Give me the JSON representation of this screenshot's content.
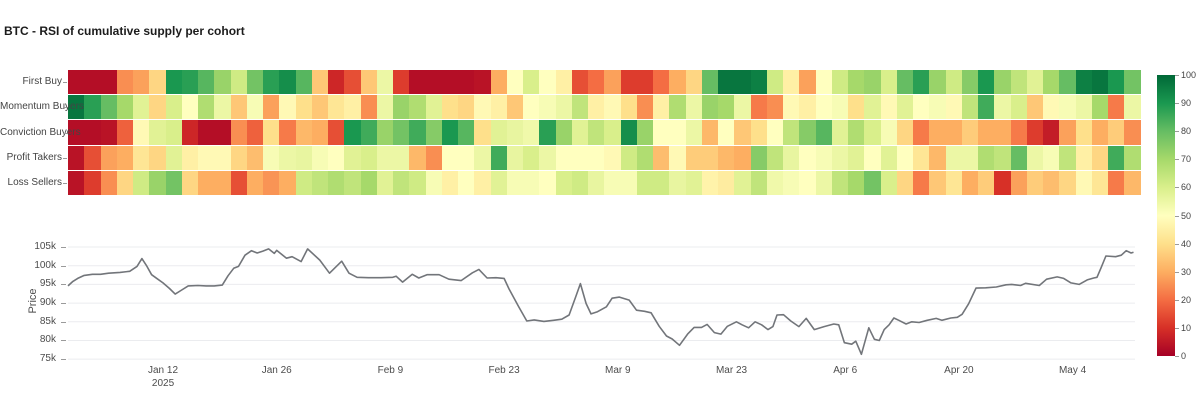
{
  "title": "BTC - RSI of cumulative supply per cohort",
  "colors": {
    "heatmap_scale": [
      "#a50026",
      "#d73027",
      "#f46d43",
      "#fdae61",
      "#fee08b",
      "#ffffbf",
      "#d9ef8b",
      "#a6d96a",
      "#66bd63",
      "#1a9850",
      "#006837"
    ],
    "price_line": "#72757a",
    "grid_line": "#ebecef",
    "title_text": "#1c1c1c",
    "axis_text": "#4c4c4c"
  },
  "chart_data": [
    {
      "type": "heatmap",
      "name": "RSI of cumulative supply per cohort",
      "rows": [
        "First Buy",
        "Momentum Buyers",
        "Conviction Buyers",
        "Profit Takers",
        "Loss Sellers"
      ],
      "value_range": [
        0,
        100
      ],
      "days_per_column": 2,
      "x_range": [
        "2024-12-31",
        "2025-05-12"
      ],
      "colorbar_ticks": [
        100,
        90,
        80,
        70,
        60,
        50,
        40,
        30,
        20,
        10,
        0
      ],
      "series": [
        {
          "name": "First Buy",
          "values": [
            3,
            3,
            3,
            25,
            28,
            38,
            90,
            88,
            82,
            72,
            62,
            78,
            88,
            92,
            82,
            35,
            8,
            15,
            35,
            55,
            12,
            3,
            3,
            3,
            3,
            4,
            30,
            50,
            60,
            50,
            45,
            15,
            20,
            28,
            12,
            12,
            20,
            30,
            38,
            80,
            97,
            97,
            95,
            62,
            45,
            28,
            50,
            62,
            70,
            72,
            60,
            80,
            88,
            72,
            62,
            75,
            90,
            72,
            65,
            58,
            70,
            80,
            95,
            97,
            90,
            78
          ]
        },
        {
          "name": "Momentum Buyers",
          "values": [
            97,
            88,
            80,
            70,
            58,
            38,
            60,
            50,
            68,
            55,
            35,
            52,
            28,
            48,
            40,
            35,
            42,
            45,
            25,
            55,
            72,
            68,
            58,
            40,
            38,
            48,
            45,
            35,
            50,
            52,
            55,
            65,
            45,
            48,
            40,
            25,
            45,
            68,
            55,
            72,
            70,
            55,
            22,
            25,
            48,
            45,
            50,
            52,
            40,
            58,
            48,
            58,
            50,
            52,
            48,
            65,
            85,
            55,
            60,
            35,
            48,
            52,
            55,
            70,
            22,
            55
          ]
        },
        {
          "name": "Conviction Buyers",
          "values": [
            3,
            3,
            4,
            18,
            48,
            58,
            60,
            8,
            3,
            3,
            25,
            18,
            40,
            22,
            32,
            30,
            15,
            90,
            85,
            72,
            78,
            85,
            75,
            90,
            82,
            40,
            58,
            56,
            54,
            88,
            72,
            58,
            65,
            60,
            92,
            72,
            50,
            50,
            55,
            32,
            50,
            35,
            40,
            50,
            65,
            75,
            82,
            58,
            68,
            60,
            52,
            38,
            22,
            30,
            30,
            36,
            30,
            30,
            22,
            12,
            6,
            28,
            40,
            30,
            36,
            25
          ]
        },
        {
          "name": "Profit Takers",
          "values": [
            4,
            15,
            28,
            30,
            42,
            38,
            58,
            45,
            48,
            48,
            38,
            33,
            52,
            55,
            56,
            52,
            50,
            58,
            60,
            55,
            55,
            32,
            25,
            50,
            50,
            55,
            85,
            56,
            60,
            55,
            50,
            50,
            50,
            48,
            62,
            68,
            33,
            48,
            36,
            36,
            32,
            30,
            75,
            65,
            56,
            50,
            52,
            55,
            58,
            50,
            58,
            50,
            42,
            32,
            55,
            55,
            68,
            65,
            80,
            55,
            52,
            65,
            45,
            38,
            85,
            68
          ]
        },
        {
          "name": "Loss Sellers",
          "values": [
            4,
            12,
            25,
            38,
            62,
            72,
            78,
            38,
            30,
            30,
            15,
            30,
            26,
            30,
            62,
            65,
            68,
            65,
            70,
            58,
            65,
            62,
            52,
            45,
            50,
            45,
            58,
            52,
            52,
            50,
            60,
            62,
            56,
            52,
            52,
            62,
            62,
            56,
            58,
            46,
            44,
            58,
            65,
            54,
            52,
            50,
            55,
            65,
            70,
            78,
            60,
            38,
            22,
            35,
            42,
            30,
            36,
            10,
            28,
            36,
            33,
            38,
            48,
            42,
            22,
            32
          ]
        }
      ]
    },
    {
      "type": "line",
      "name": "BTC price",
      "ylabel": "Price",
      "ylim": [
        74,
        106.5
      ],
      "yticks": [
        {
          "label": "105k",
          "value": 105
        },
        {
          "label": "100k",
          "value": 100
        },
        {
          "label": "95k",
          "value": 95
        },
        {
          "label": "90k",
          "value": 90
        },
        {
          "label": "85k",
          "value": 85
        },
        {
          "label": "80k",
          "value": 80
        },
        {
          "label": "75k",
          "value": 75
        }
      ],
      "xticks": [
        {
          "label": "Jan 12",
          "sublabel": "2025",
          "day": 11.7
        },
        {
          "label": "Jan 26",
          "day": 25.7
        },
        {
          "label": "Feb 9",
          "day": 39.7
        },
        {
          "label": "Feb 23",
          "day": 53.7
        },
        {
          "label": "Mar 9",
          "day": 67.7
        },
        {
          "label": "Mar 23",
          "day": 81.7
        },
        {
          "label": "Apr 6",
          "day": 95.7
        },
        {
          "label": "Apr 20",
          "day": 109.7
        },
        {
          "label": "May 4",
          "day": 123.7
        }
      ],
      "points": [
        [
          0,
          94.6
        ],
        [
          0.6,
          95.8
        ],
        [
          1.2,
          96.6
        ],
        [
          2,
          97.4
        ],
        [
          3,
          97.7
        ],
        [
          4,
          97.7
        ],
        [
          5,
          98
        ],
        [
          6.4,
          98.2
        ],
        [
          7.6,
          98.5
        ],
        [
          8.5,
          99.8
        ],
        [
          9.1,
          101.9
        ],
        [
          9.7,
          99.9
        ],
        [
          10.3,
          97.6
        ],
        [
          11,
          96.5
        ],
        [
          11.7,
          95.4
        ],
        [
          12.5,
          93.9
        ],
        [
          13.2,
          92.4
        ],
        [
          14,
          93.5
        ],
        [
          14.8,
          94.6
        ],
        [
          16,
          94.7
        ],
        [
          17,
          94.6
        ],
        [
          18,
          94.6
        ],
        [
          19,
          94.8
        ],
        [
          19.7,
          97.3
        ],
        [
          20.4,
          99.3
        ],
        [
          21,
          99.8
        ],
        [
          21.8,
          102.8
        ],
        [
          22.6,
          104
        ],
        [
          23.3,
          103.4
        ],
        [
          24,
          103.9
        ],
        [
          24.7,
          104.5
        ],
        [
          25.4,
          103.3
        ],
        [
          25.7,
          104.1
        ],
        [
          26.9,
          102
        ],
        [
          27.6,
          102.4
        ],
        [
          28.7,
          101.1
        ],
        [
          29.5,
          104.5
        ],
        [
          31,
          101.5
        ],
        [
          32.2,
          98
        ],
        [
          33.7,
          101.2
        ],
        [
          34.6,
          98
        ],
        [
          35.6,
          96.9
        ],
        [
          37,
          96.8
        ],
        [
          38.5,
          96.8
        ],
        [
          40,
          96.9
        ],
        [
          40.4,
          97.2
        ],
        [
          41.2,
          95.6
        ],
        [
          42.4,
          97.7
        ],
        [
          43.2,
          96.7
        ],
        [
          44.2,
          97.6
        ],
        [
          45.7,
          97.6
        ],
        [
          46.9,
          96.4
        ],
        [
          48.4,
          96
        ],
        [
          49.8,
          98.1
        ],
        [
          50.6,
          99
        ],
        [
          51.6,
          96.7
        ],
        [
          52.7,
          96.8
        ],
        [
          53.7,
          96.6
        ],
        [
          54.3,
          93.8
        ],
        [
          55.5,
          89
        ],
        [
          56.5,
          85.2
        ],
        [
          57.4,
          85.5
        ],
        [
          58.6,
          85.1
        ],
        [
          59.8,
          85.4
        ],
        [
          60.8,
          85.7
        ],
        [
          61.7,
          86.8
        ],
        [
          62.5,
          91.6
        ],
        [
          63.1,
          95.2
        ],
        [
          63.8,
          89.9
        ],
        [
          64.4,
          87.1
        ],
        [
          65.2,
          87.7
        ],
        [
          66.3,
          89
        ],
        [
          67,
          91.3
        ],
        [
          67.9,
          91.6
        ],
        [
          69.1,
          90.8
        ],
        [
          70,
          88.1
        ],
        [
          71,
          87.8
        ],
        [
          71.8,
          87.4
        ],
        [
          72.8,
          83.8
        ],
        [
          73.7,
          81.2
        ],
        [
          74.4,
          80.4
        ],
        [
          75.3,
          78.7
        ],
        [
          76.3,
          81.7
        ],
        [
          77.1,
          83.5
        ],
        [
          78,
          83.5
        ],
        [
          78.7,
          84.3
        ],
        [
          79.6,
          82.1
        ],
        [
          80.4,
          81.7
        ],
        [
          81.2,
          83.8
        ],
        [
          82.3,
          85
        ],
        [
          83,
          84.2
        ],
        [
          83.8,
          83.4
        ],
        [
          84.6,
          85
        ],
        [
          85.4,
          84.2
        ],
        [
          86.2,
          82.9
        ],
        [
          86.8,
          83.7
        ],
        [
          87.3,
          86.8
        ],
        [
          88.1,
          86.9
        ],
        [
          89,
          85.2
        ],
        [
          90,
          83.7
        ],
        [
          90.9,
          85.9
        ],
        [
          91.9,
          82.9
        ],
        [
          93.1,
          83.7
        ],
        [
          94.3,
          84.4
        ],
        [
          94.9,
          84.2
        ],
        [
          95.6,
          79.4
        ],
        [
          96.5,
          79
        ],
        [
          97,
          79.8
        ],
        [
          97.7,
          76.3
        ],
        [
          98.6,
          83.4
        ],
        [
          99.3,
          80.3
        ],
        [
          99.9,
          80
        ],
        [
          100.5,
          82.9
        ],
        [
          101.1,
          84.2
        ],
        [
          101.7,
          86
        ],
        [
          102.3,
          85.4
        ],
        [
          103.2,
          84.4
        ],
        [
          103.9,
          85
        ],
        [
          104.8,
          84.8
        ],
        [
          105.8,
          85.4
        ],
        [
          106.9,
          85.9
        ],
        [
          107.6,
          85.4
        ],
        [
          108.7,
          86
        ],
        [
          109.5,
          86.2
        ],
        [
          110.1,
          87
        ],
        [
          110.9,
          89.8
        ],
        [
          111.8,
          94
        ],
        [
          113,
          94.1
        ],
        [
          114.3,
          94.3
        ],
        [
          115.5,
          94.9
        ],
        [
          116.2,
          95
        ],
        [
          117.3,
          94.7
        ],
        [
          117.9,
          95.3
        ],
        [
          119.6,
          94.7
        ],
        [
          120.5,
          96.4
        ],
        [
          121.8,
          97
        ],
        [
          122.6,
          96.6
        ],
        [
          123.5,
          95.4
        ],
        [
          124.5,
          95
        ],
        [
          125.5,
          96.2
        ],
        [
          126.3,
          96.7
        ],
        [
          126.7,
          96.9
        ],
        [
          127.2,
          99.4
        ],
        [
          127.8,
          102.6
        ],
        [
          129,
          102.4
        ],
        [
          129.7,
          102.8
        ],
        [
          130.3,
          104
        ],
        [
          130.9,
          103.4
        ],
        [
          131.2,
          103.6
        ]
      ]
    }
  ]
}
